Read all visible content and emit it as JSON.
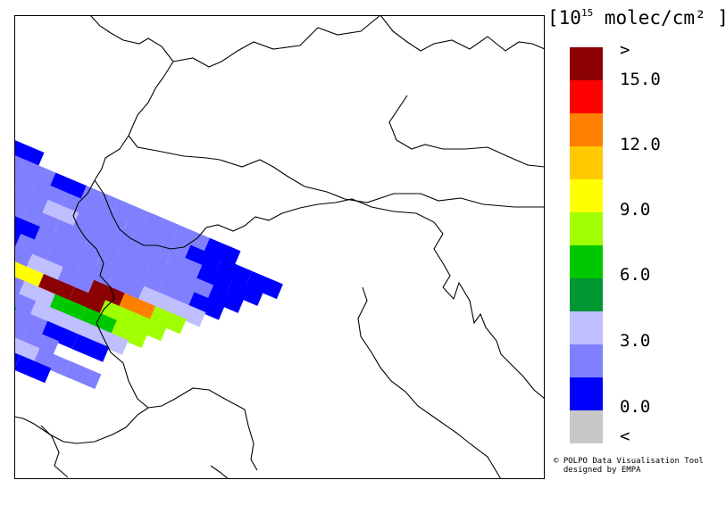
{
  "legend": {
    "title_main": "10",
    "title_exp": "15",
    "title_unit": " molec/cm²",
    "bracket_open": "[",
    "bracket_close": "]",
    "colors": [
      "#8b0000",
      "#ff0000",
      "#ff8000",
      "#ffc800",
      "#ffff00",
      "#a0ff00",
      "#00c800",
      "#009632",
      "#bfbfff",
      "#8080ff",
      "#0000ff",
      "#c8c8c8"
    ],
    "labels": [
      ">",
      "15.0",
      "12.0",
      "9.0",
      "6.0",
      "3.0",
      "0.0",
      "<"
    ]
  },
  "credit": {
    "line1": "© POLPO Data Visualisation Tool",
    "line2": "  designed by EMPA"
  },
  "map": {
    "pixel_colors": {
      "C": "#0000ff",
      "P": "#8080ff",
      "L": "#bfbfff",
      "D": "#009632",
      "G": "#00c800",
      "Y": "#a0ff00",
      "E": "#ffff00",
      "O": "#ff8000",
      "M": "#8b0000",
      "S": "#c8c8c8"
    }
  }
}
